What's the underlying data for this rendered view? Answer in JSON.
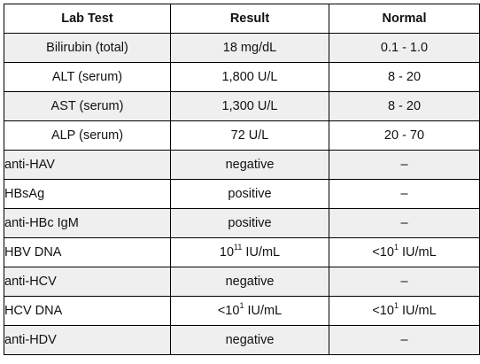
{
  "table": {
    "headers": [
      "Lab Test",
      "Result",
      "Normal"
    ],
    "rows": [
      {
        "test": "Bilirubin (total)",
        "result": "18 mg/dL",
        "normal": "0.1 - 1.0"
      },
      {
        "test": "ALT (serum)",
        "result": "1,800 U/L",
        "normal": "8 - 20"
      },
      {
        "test": "AST (serum)",
        "result": "1,300 U/L",
        "normal": "8 - 20"
      },
      {
        "test": "ALP (serum)",
        "result": "72 U/L",
        "normal": "20 - 70"
      },
      {
        "test": "anti-HAV",
        "result": "negative",
        "normal": "–"
      },
      {
        "test": "HBsAg",
        "result": "positive",
        "normal": "–"
      },
      {
        "test": "anti-HBc IgM",
        "result": "positive",
        "normal": "–"
      },
      {
        "test": "HBV DNA",
        "result": {
          "prefix": "10",
          "exponent": "11",
          "suffix": " IU/mL"
        },
        "normal": {
          "prefix": "<10",
          "exponent": "1",
          "suffix": " IU/mL"
        }
      },
      {
        "test": "anti-HCV",
        "result": "negative",
        "normal": "–"
      },
      {
        "test": "HCV DNA",
        "result": {
          "prefix": "<10",
          "exponent": "1",
          "suffix": " IU/mL"
        },
        "normal": {
          "prefix": "<10",
          "exponent": "1",
          "suffix": " IU/mL"
        }
      },
      {
        "test": "anti-HDV",
        "result": "negative",
        "normal": "–"
      }
    ]
  },
  "colors": {
    "shaded_row": "#efefef",
    "border": "#000000"
  }
}
